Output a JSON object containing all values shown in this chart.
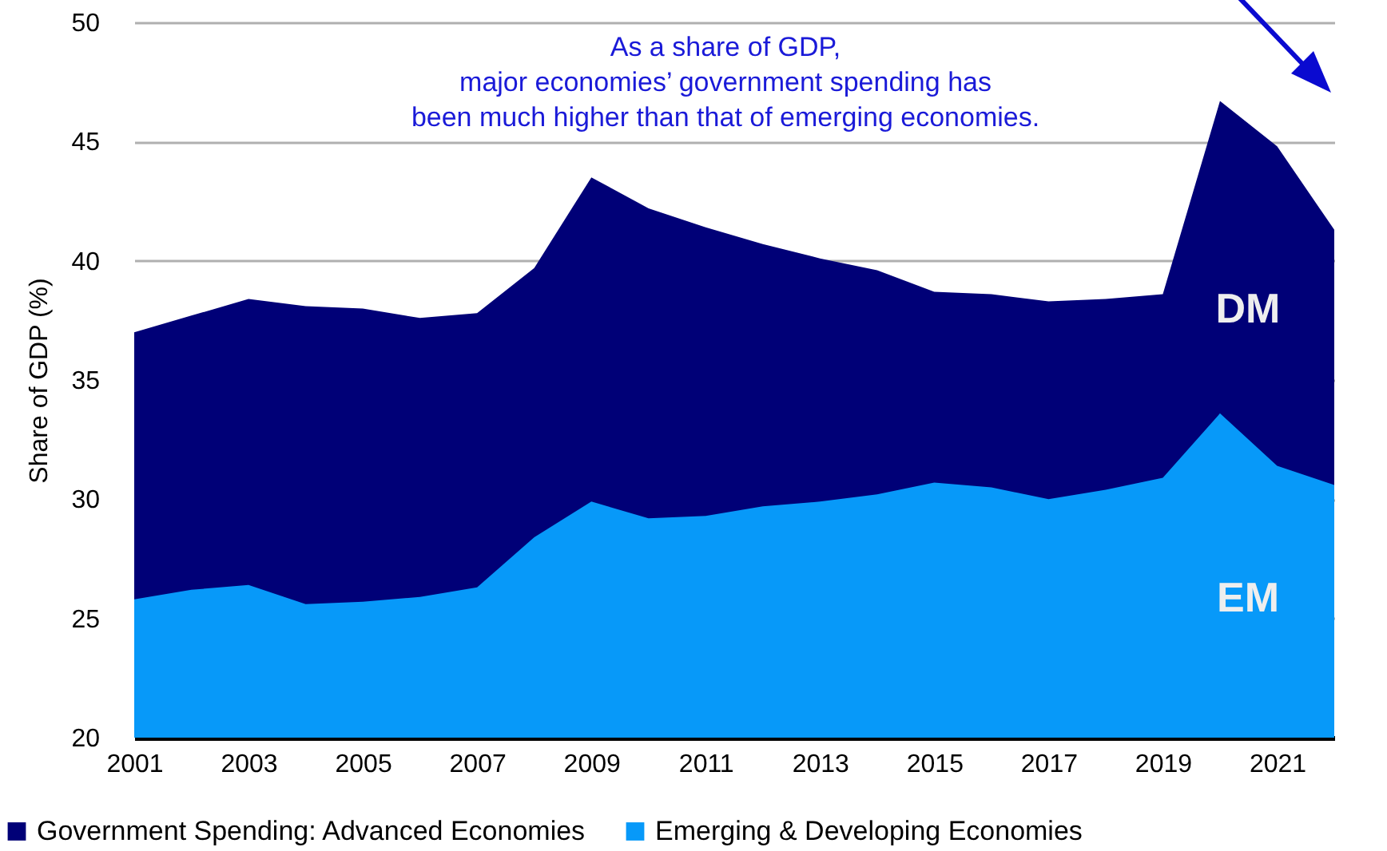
{
  "chart_data": {
    "type": "area",
    "ylabel": "Share of GDP (%)",
    "x": [
      2001,
      2002,
      2003,
      2004,
      2005,
      2006,
      2007,
      2008,
      2009,
      2010,
      2011,
      2012,
      2013,
      2014,
      2015,
      2016,
      2017,
      2018,
      2019,
      2020,
      2021,
      2022
    ],
    "series": [
      {
        "name": "Government Spending: Advanced Economies",
        "color": "#000077",
        "values": [
          37.0,
          37.7,
          38.4,
          38.1,
          38.0,
          37.6,
          37.8,
          39.7,
          43.5,
          42.2,
          41.4,
          40.7,
          40.1,
          39.6,
          38.7,
          38.6,
          38.3,
          38.4,
          38.6,
          46.7,
          44.8,
          41.3
        ]
      },
      {
        "name": "Emerging & Developing Economies",
        "color": "#0799f9",
        "values": [
          25.8,
          26.2,
          26.4,
          25.6,
          25.7,
          25.9,
          26.3,
          28.4,
          29.9,
          29.2,
          29.3,
          29.7,
          29.9,
          30.2,
          30.7,
          30.5,
          30.0,
          30.4,
          30.9,
          33.6,
          31.4,
          30.6
        ]
      }
    ],
    "xlim": [
      2001,
      2022
    ],
    "xticks": [
      2001,
      2003,
      2005,
      2007,
      2009,
      2011,
      2013,
      2015,
      2017,
      2019,
      2021
    ],
    "ylim": [
      20,
      50
    ],
    "yticks": [
      20,
      25,
      30,
      35,
      40,
      45,
      50
    ],
    "grid": "y",
    "legend": "bottom",
    "annotations": [
      "As a share of GDP,\nmajor economies’ government spending has\nbeen much higher than that of emerging economies.",
      "DM",
      "EM"
    ]
  }
}
